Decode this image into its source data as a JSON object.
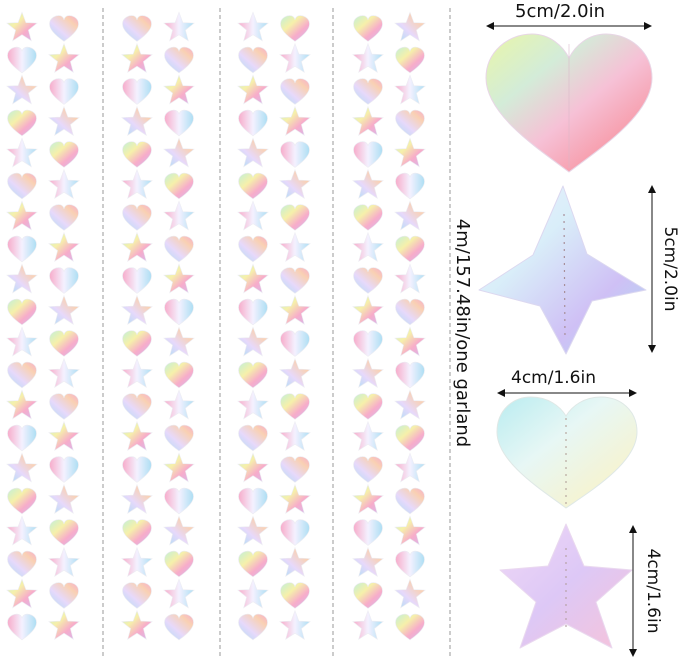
{
  "labels": {
    "big_heart": "5cm/2.0in",
    "big_star": "5cm/2.0in",
    "small_heart": "4cm/1.6in",
    "small_star": "4cm/1.6in",
    "garland_length": "4m/157.48in/one garland"
  },
  "garland_strands": 4,
  "colors": {
    "pink": "#f7a8c8",
    "violet": "#cdb6f2",
    "blue": "#a9ddf3",
    "mint": "#bff0d6",
    "yellow": "#f6f0a6",
    "peach": "#f9cfb0"
  }
}
